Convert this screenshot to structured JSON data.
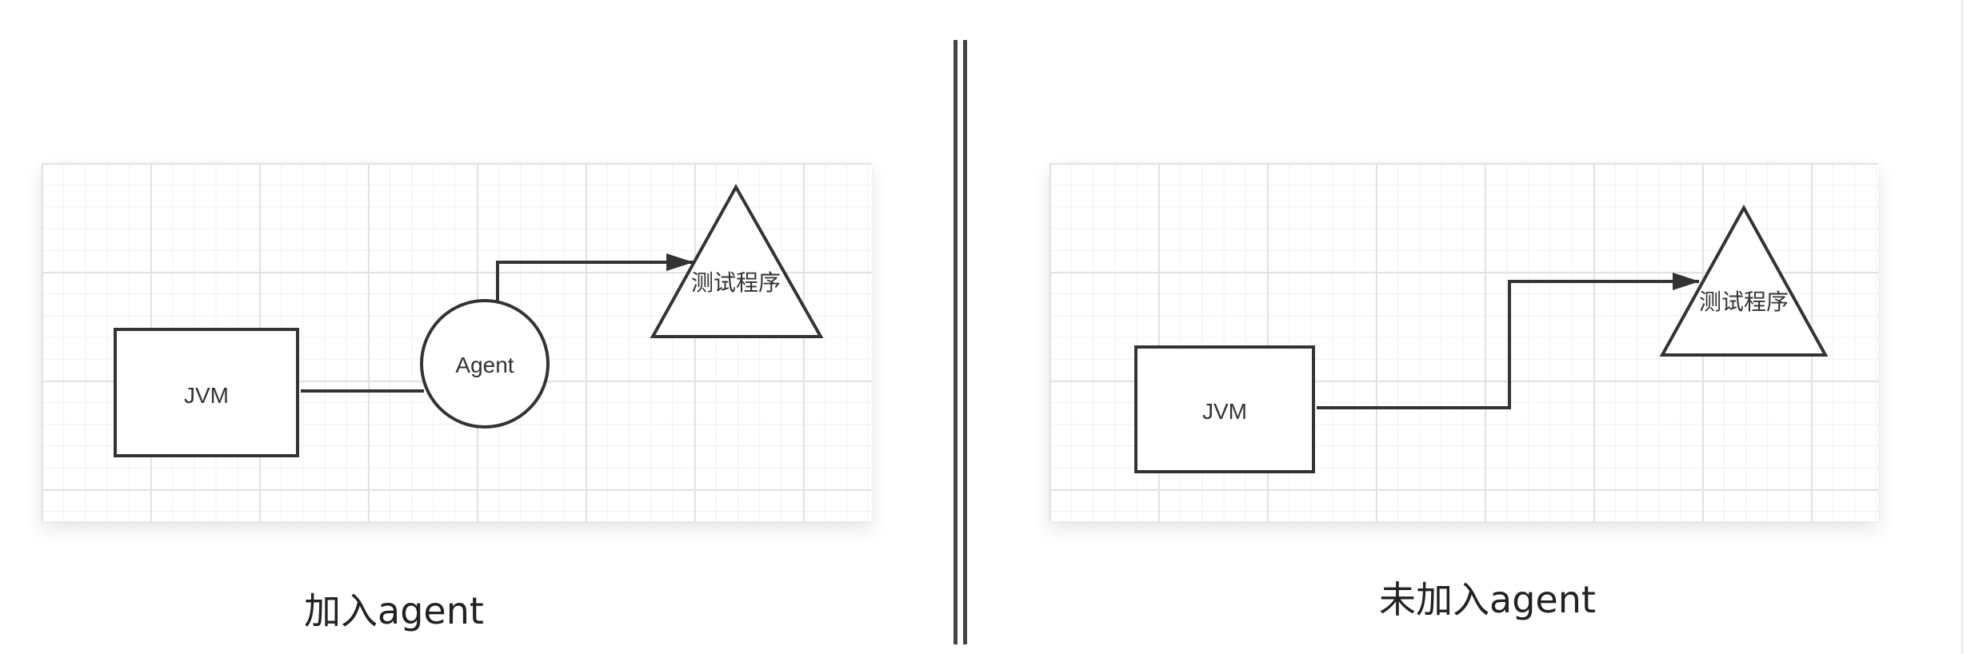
{
  "left_diagram": {
    "caption": "加入agent",
    "nodes": {
      "jvm": "JVM",
      "agent": "Agent",
      "test_program": "测试程序"
    }
  },
  "right_diagram": {
    "caption": "未加入agent",
    "nodes": {
      "jvm": "JVM",
      "test_program": "测试程序"
    }
  },
  "colors": {
    "stroke": "#333333",
    "grid_major": "#e2e2e2",
    "grid_minor": "#f0f0f0",
    "divider": "#444444"
  }
}
